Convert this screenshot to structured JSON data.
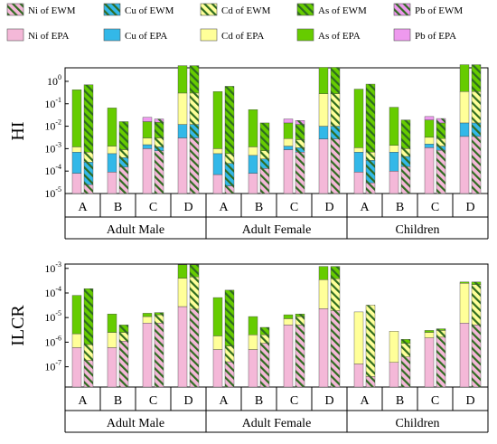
{
  "legend": {
    "items": [
      {
        "label": "Ni of EWM",
        "color": "#f4b8d8",
        "hatched": true
      },
      {
        "label": "Cu of EWM",
        "color": "#33b8e8",
        "hatched": true
      },
      {
        "label": "Cd of EWM",
        "color": "#ffff99",
        "hatched": true
      },
      {
        "label": "As of EWM",
        "color": "#66cc00",
        "hatched": true
      },
      {
        "label": "Pb of EWM",
        "color": "#ee99ee",
        "hatched": true
      },
      {
        "label": "Ni of EPA",
        "color": "#f4b8d8",
        "hatched": false
      },
      {
        "label": "Cu of EPA",
        "color": "#33b8e8",
        "hatched": false
      },
      {
        "label": "Cd of EPA",
        "color": "#ffff99",
        "hatched": false
      },
      {
        "label": "As of EPA",
        "color": "#66cc00",
        "hatched": false
      },
      {
        "label": "Pb of EPA",
        "color": "#ee99ee",
        "hatched": false
      }
    ]
  },
  "chart_data": [
    {
      "type": "bar",
      "stacked": true,
      "log_scale": true,
      "ylabel": "HI",
      "ylim": [
        1e-05,
        4
      ],
      "y_tick_labels": [
        "10^-5",
        "10^-4",
        "10^-3",
        "10^-2",
        "10^-1",
        "10^0"
      ],
      "groups": [
        "Adult Male",
        "Adult Female",
        "Children"
      ],
      "categories": [
        "A",
        "B",
        "C",
        "D"
      ],
      "bars": [
        {
          "group": "Adult Male",
          "category": "A",
          "method": "EPA",
          "cumulative": {
            "Ni": 8e-05,
            "Cu": 0.0007,
            "Cd": 0.0012,
            "As": 0.42
          }
        },
        {
          "group": "Adult Male",
          "category": "A",
          "method": "EWM",
          "cumulative": {
            "Ni": 2.5e-05,
            "Cu": 0.00025,
            "Cd": 0.0007,
            "As": 0.7
          }
        },
        {
          "group": "Adult Male",
          "category": "B",
          "method": "EPA",
          "cumulative": {
            "Ni": 9e-05,
            "Cu": 0.0006,
            "Cd": 0.0013,
            "As": 0.065
          }
        },
        {
          "group": "Adult Male",
          "category": "B",
          "method": "EWM",
          "cumulative": {
            "Ni": 0.00015,
            "Cu": 0.0004,
            "Cd": 0.0009,
            "As": 0.016
          }
        },
        {
          "group": "Adult Male",
          "category": "C",
          "method": "EPA",
          "cumulative": {
            "Ni": 0.001,
            "Cu": 0.0015,
            "Cd": 0.003,
            "As": 0.016,
            "Pb": 0.025
          }
        },
        {
          "group": "Adult Male",
          "category": "C",
          "method": "EWM",
          "cumulative": {
            "Ni": 0.0008,
            "Cu": 0.0012,
            "Cd": 0.003,
            "As": 0.015,
            "Pb": 0.021
          }
        },
        {
          "group": "Adult Male",
          "category": "D",
          "method": "EPA",
          "cumulative": {
            "Ni": 0.003,
            "Cu": 0.012,
            "Cd": 0.3,
            "As": 5
          }
        },
        {
          "group": "Adult Male",
          "category": "D",
          "method": "EWM",
          "cumulative": {
            "Ni": 0.003,
            "Cu": 0.012,
            "Cd": 0.3,
            "As": 5
          }
        },
        {
          "group": "Adult Female",
          "category": "A",
          "method": "EPA",
          "cumulative": {
            "Ni": 7e-05,
            "Cu": 0.0006,
            "Cd": 0.001,
            "As": 0.35
          }
        },
        {
          "group": "Adult Female",
          "category": "A",
          "method": "EWM",
          "cumulative": {
            "Ni": 2.2e-05,
            "Cu": 0.00022,
            "Cd": 0.0006,
            "As": 0.6
          }
        },
        {
          "group": "Adult Female",
          "category": "B",
          "method": "EPA",
          "cumulative": {
            "Ni": 8e-05,
            "Cu": 0.0005,
            "Cd": 0.0012,
            "As": 0.055
          }
        },
        {
          "group": "Adult Female",
          "category": "B",
          "method": "EWM",
          "cumulative": {
            "Ni": 0.00013,
            "Cu": 0.00035,
            "Cd": 0.0008,
            "As": 0.014
          }
        },
        {
          "group": "Adult Female",
          "category": "C",
          "method": "EPA",
          "cumulative": {
            "Ni": 0.0009,
            "Cu": 0.0013,
            "Cd": 0.0028,
            "As": 0.014,
            "Pb": 0.021
          }
        },
        {
          "group": "Adult Female",
          "category": "C",
          "method": "EWM",
          "cumulative": {
            "Ni": 0.0007,
            "Cu": 0.0011,
            "Cd": 0.0025,
            "As": 0.012,
            "Pb": 0.018
          }
        },
        {
          "group": "Adult Female",
          "category": "D",
          "method": "EPA",
          "cumulative": {
            "Ni": 0.0027,
            "Cu": 0.01,
            "Cd": 0.28,
            "As": 4.2
          }
        },
        {
          "group": "Adult Female",
          "category": "D",
          "method": "EWM",
          "cumulative": {
            "Ni": 0.0027,
            "Cu": 0.01,
            "Cd": 0.28,
            "As": 4.2
          }
        },
        {
          "group": "Children",
          "category": "A",
          "method": "EPA",
          "cumulative": {
            "Ni": 9e-05,
            "Cu": 0.0007,
            "Cd": 0.0011,
            "As": 0.45
          }
        },
        {
          "group": "Children",
          "category": "A",
          "method": "EWM",
          "cumulative": {
            "Ni": 3e-05,
            "Cu": 0.0003,
            "Cd": 0.0007,
            "As": 0.75
          }
        },
        {
          "group": "Children",
          "category": "B",
          "method": "EPA",
          "cumulative": {
            "Ni": 0.0001,
            "Cu": 0.0007,
            "Cd": 0.0014,
            "As": 0.07
          }
        },
        {
          "group": "Children",
          "category": "B",
          "method": "EWM",
          "cumulative": {
            "Ni": 0.00016,
            "Cu": 0.00045,
            "Cd": 0.001,
            "As": 0.019
          }
        },
        {
          "group": "Children",
          "category": "C",
          "method": "EPA",
          "cumulative": {
            "Ni": 0.0011,
            "Cu": 0.0016,
            "Cd": 0.0032,
            "As": 0.019,
            "Pb": 0.027
          }
        },
        {
          "group": "Children",
          "category": "C",
          "method": "EWM",
          "cumulative": {
            "Ni": 0.00085,
            "Cu": 0.0013,
            "Cd": 0.0028,
            "As": 0.014,
            "Pb": 0.022
          }
        },
        {
          "group": "Children",
          "category": "D",
          "method": "EPA",
          "cumulative": {
            "Ni": 0.0035,
            "Cu": 0.014,
            "Cd": 0.35,
            "As": 5.5
          }
        },
        {
          "group": "Children",
          "category": "D",
          "method": "EWM",
          "cumulative": {
            "Ni": 0.0035,
            "Cu": 0.014,
            "Cd": 0.35,
            "As": 5.5
          }
        }
      ]
    },
    {
      "type": "bar",
      "stacked": true,
      "log_scale": true,
      "ylabel": "ILCR",
      "ylim": [
        1.5e-08,
        0.0015
      ],
      "y_tick_labels": [
        "10^-7",
        "10^-6",
        "10^-5",
        "10^-4",
        "10^-3"
      ],
      "groups": [
        "Adult Male",
        "Adult Female",
        "Children"
      ],
      "categories": [
        "A",
        "B",
        "C",
        "D"
      ],
      "bars": [
        {
          "group": "Adult Male",
          "category": "A",
          "method": "EPA",
          "cumulative": {
            "Ni": 6e-07,
            "Cd": 2.2e-06,
            "As": 8e-05
          }
        },
        {
          "group": "Adult Male",
          "category": "A",
          "method": "EWM",
          "cumulative": {
            "Ni": 1.8e-07,
            "Cd": 8e-07,
            "As": 0.00015
          }
        },
        {
          "group": "Adult Male",
          "category": "B",
          "method": "EPA",
          "cumulative": {
            "Ni": 6e-07,
            "Cd": 2.5e-06,
            "As": 1.4e-05
          }
        },
        {
          "group": "Adult Male",
          "category": "B",
          "method": "EWM",
          "cumulative": {
            "Ni": 1.1e-06,
            "Cd": 2.5e-06,
            "As": 5e-06
          }
        },
        {
          "group": "Adult Male",
          "category": "C",
          "method": "EPA",
          "cumulative": {
            "Ni": 6e-06,
            "Cd": 1.1e-05,
            "As": 1.5e-05
          }
        },
        {
          "group": "Adult Male",
          "category": "C",
          "method": "EWM",
          "cumulative": {
            "Ni": 6e-06,
            "Cd": 1.3e-05,
            "As": 1.6e-05
          }
        },
        {
          "group": "Adult Male",
          "category": "D",
          "method": "EPA",
          "cumulative": {
            "Ni": 2.8e-05,
            "Cd": 0.0004,
            "As": 0.0014
          }
        },
        {
          "group": "Adult Male",
          "category": "D",
          "method": "EWM",
          "cumulative": {
            "Ni": 2.2e-05,
            "Cd": 0.00045,
            "As": 0.0014
          }
        },
        {
          "group": "Adult Female",
          "category": "A",
          "method": "EPA",
          "cumulative": {
            "Ni": 5e-07,
            "Cd": 1.8e-06,
            "As": 6.5e-05
          }
        },
        {
          "group": "Adult Female",
          "category": "A",
          "method": "EWM",
          "cumulative": {
            "Ni": 1.6e-07,
            "Cd": 7e-07,
            "As": 0.00013
          }
        },
        {
          "group": "Adult Female",
          "category": "B",
          "method": "EPA",
          "cumulative": {
            "Ni": 5e-07,
            "Cd": 2e-06,
            "As": 1.1e-05
          }
        },
        {
          "group": "Adult Female",
          "category": "B",
          "method": "EWM",
          "cumulative": {
            "Ni": 9e-07,
            "Cd": 2e-06,
            "As": 4e-06
          }
        },
        {
          "group": "Adult Female",
          "category": "C",
          "method": "EPA",
          "cumulative": {
            "Ni": 5e-06,
            "Cd": 9e-06,
            "As": 1.3e-05
          }
        },
        {
          "group": "Adult Female",
          "category": "C",
          "method": "EWM",
          "cumulative": {
            "Ni": 5e-06,
            "Cd": 1.1e-05,
            "As": 1.4e-05
          }
        },
        {
          "group": "Adult Female",
          "category": "D",
          "method": "EPA",
          "cumulative": {
            "Ni": 2.3e-05,
            "Cd": 0.00035,
            "As": 0.0012
          }
        },
        {
          "group": "Adult Female",
          "category": "D",
          "method": "EWM",
          "cumulative": {
            "Ni": 1.9e-05,
            "Cd": 0.00038,
            "As": 0.0012
          }
        },
        {
          "group": "Children",
          "category": "A",
          "method": "EPA",
          "cumulative": {
            "Ni": 1.3e-07,
            "Cd": 1.7e-05
          }
        },
        {
          "group": "Children",
          "category": "A",
          "method": "EWM",
          "cumulative": {
            "Ni": 4e-08,
            "Cd": 3.2e-05
          }
        },
        {
          "group": "Children",
          "category": "B",
          "method": "EPA",
          "cumulative": {
            "Ni": 1.5e-07,
            "Cd": 2.8e-06
          }
        },
        {
          "group": "Children",
          "category": "B",
          "method": "EWM",
          "cumulative": {
            "Ni": 2.5e-07,
            "Cd": 9e-07,
            "As": 1.3e-06
          }
        },
        {
          "group": "Children",
          "category": "C",
          "method": "EPA",
          "cumulative": {
            "Ni": 1.5e-06,
            "Cd": 2.5e-06,
            "As": 3e-06
          }
        },
        {
          "group": "Children",
          "category": "C",
          "method": "EWM",
          "cumulative": {
            "Ni": 1.6e-06,
            "Cd": 3e-06,
            "As": 3.5e-06
          }
        },
        {
          "group": "Children",
          "category": "D",
          "method": "EPA",
          "cumulative": {
            "Ni": 6e-06,
            "Cd": 0.00025,
            "As": 0.00028
          }
        },
        {
          "group": "Children",
          "category": "D",
          "method": "EWM",
          "cumulative": {
            "Ni": 5e-06,
            "Cd": 0.00022,
            "As": 0.00028
          }
        }
      ]
    }
  ]
}
